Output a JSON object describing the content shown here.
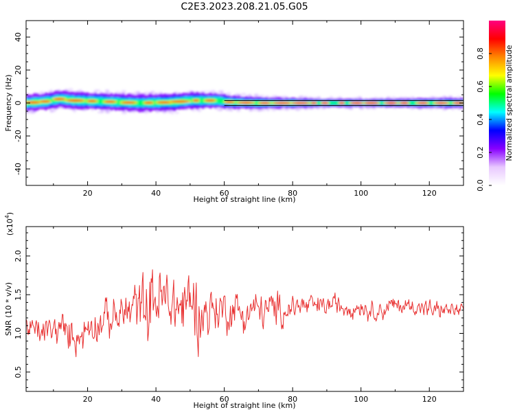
{
  "title": "C2E3.2023.208.21.05.G05",
  "chart_data": [
    {
      "type": "heatmap",
      "xlabel": "Height of straight line (km)",
      "ylabel": "Frequency (Hz)",
      "xlim": [
        2,
        130
      ],
      "ylim": [
        -50,
        50
      ],
      "x_ticks": [
        20,
        40,
        60,
        80,
        100,
        120
      ],
      "y_ticks": [
        -40,
        -20,
        0,
        20,
        40
      ],
      "colorbar": {
        "label": "Normalized spectral amplitude",
        "range": [
          0,
          1
        ],
        "ticks": [
          0.0,
          0.2,
          0.4,
          0.6,
          0.8
        ],
        "tick_labels": [
          "0.0",
          "0.2",
          "0.4",
          "0.6",
          "0.8"
        ],
        "colormap": [
          "#ffffff",
          "#e8c8ff",
          "#8800ff",
          "#0000ff",
          "#00ffff",
          "#00ff00",
          "#ffff00",
          "#ff8800",
          "#ff0000",
          "#ff0080"
        ]
      },
      "ridge": {
        "x": [
          2,
          8,
          12,
          16,
          24,
          35,
          45,
          50,
          58,
          62,
          70,
          80,
          90,
          100,
          110,
          120,
          130
        ],
        "center_hz": [
          0.0,
          1.0,
          2.5,
          1.5,
          1.0,
          0.0,
          0.5,
          1.5,
          1.5,
          0.5,
          0.0,
          0.0,
          0.0,
          0.0,
          0.0,
          0.0,
          0.0
        ],
        "halfwidth_hz": [
          5,
          5,
          5,
          5,
          5,
          5,
          5,
          5,
          4.5,
          4,
          3.5,
          3,
          2.5,
          2.5,
          2.5,
          3,
          3
        ]
      },
      "reference_lines_hz": [
        -1.5,
        1.5
      ]
    },
    {
      "type": "line",
      "xlabel": "Height of straight line (km)",
      "ylabel": "SNR (10 * v/v)",
      "scale_label": "(x10",
      "scale_exp": "4",
      "scale_close": ")",
      "xlim": [
        2,
        130
      ],
      "ylim": [
        0.25,
        2.38
      ],
      "x_ticks": [
        20,
        40,
        60,
        80,
        100,
        120
      ],
      "y_ticks": [
        0.5,
        1.0,
        1.5,
        2.0
      ],
      "y_tick_labels": [
        "0.5",
        "1.0",
        "1.5",
        "2.0"
      ],
      "color": "#e83030",
      "series": [
        {
          "x": [
            2,
            4,
            6,
            8,
            10,
            12,
            14,
            16,
            18,
            20,
            22,
            24,
            26,
            28,
            30,
            32,
            34,
            36,
            38,
            40,
            42,
            44,
            46,
            48,
            50,
            52,
            54,
            56,
            58,
            60,
            62,
            64,
            66,
            68,
            70,
            72,
            74,
            76,
            78,
            80,
            82,
            84,
            86,
            88,
            90,
            92,
            94,
            96,
            98,
            100,
            102,
            104,
            106,
            108,
            110,
            112,
            114,
            116,
            118,
            120,
            122,
            124,
            126,
            128,
            130
          ],
          "mean": [
            1.05,
            1.05,
            1.0,
            1.05,
            1.0,
            1.1,
            0.95,
            1.0,
            0.95,
            1.1,
            1.15,
            1.15,
            1.2,
            1.2,
            1.25,
            1.3,
            1.35,
            1.35,
            1.4,
            1.45,
            1.4,
            1.4,
            1.35,
            1.35,
            1.4,
            1.35,
            1.25,
            1.3,
            1.3,
            1.3,
            1.3,
            1.3,
            1.25,
            1.3,
            1.3,
            1.3,
            1.3,
            1.3,
            1.3,
            1.35,
            1.35,
            1.35,
            1.35,
            1.35,
            1.35,
            1.4,
            1.35,
            1.35,
            1.35,
            1.35,
            1.3,
            1.3,
            1.3,
            1.35,
            1.35,
            1.35,
            1.35,
            1.35,
            1.35,
            1.3,
            1.3,
            1.3,
            1.3,
            1.3,
            1.3
          ],
          "spread": [
            0.25,
            0.3,
            0.3,
            0.3,
            0.3,
            0.35,
            0.35,
            0.35,
            0.35,
            0.35,
            0.35,
            0.35,
            0.4,
            0.4,
            0.45,
            0.5,
            0.55,
            0.6,
            0.7,
            0.75,
            0.75,
            0.7,
            0.7,
            0.75,
            0.8,
            0.7,
            0.6,
            0.55,
            0.45,
            0.45,
            0.4,
            0.4,
            0.4,
            0.4,
            0.35,
            0.35,
            0.35,
            0.35,
            0.3,
            0.3,
            0.25,
            0.25,
            0.25,
            0.22,
            0.22,
            0.2,
            0.2,
            0.2,
            0.2,
            0.2,
            0.2,
            0.2,
            0.2,
            0.2,
            0.2,
            0.18,
            0.18,
            0.18,
            0.18,
            0.18,
            0.18,
            0.15,
            0.15,
            0.15,
            0.15
          ]
        }
      ]
    }
  ]
}
